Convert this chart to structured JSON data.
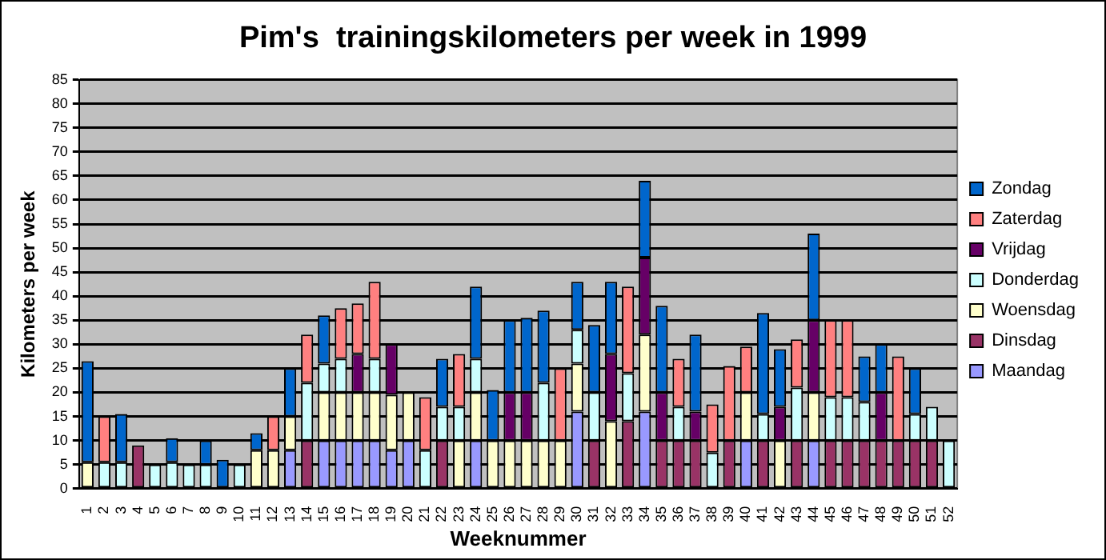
{
  "chart_data": {
    "type": "bar",
    "title": "Pim's  trainingskilometers per week in 1999",
    "xlabel": "Weeknummer",
    "ylabel": "Kilometers per week",
    "categories": [
      "1",
      "2",
      "3",
      "4",
      "5",
      "6",
      "7",
      "8",
      "9",
      "10",
      "11",
      "12",
      "13",
      "14",
      "15",
      "16",
      "17",
      "18",
      "19",
      "20",
      "21",
      "22",
      "23",
      "24",
      "25",
      "26",
      "27",
      "28",
      "29",
      "30",
      "31",
      "32",
      "33",
      "34",
      "35",
      "36",
      "37",
      "38",
      "39",
      "40",
      "41",
      "42",
      "43",
      "44",
      "45",
      "46",
      "47",
      "48",
      "49",
      "50",
      "51",
      "52"
    ],
    "stacked": true,
    "ylim": [
      0,
      85
    ],
    "yticks": [
      0,
      5,
      10,
      15,
      20,
      25,
      30,
      35,
      40,
      45,
      50,
      55,
      60,
      65,
      70,
      75,
      80,
      85
    ],
    "grid": "y",
    "legend": "right",
    "series": [
      {
        "name": "Maandag",
        "color": "#9999ff",
        "values": [
          null,
          null,
          null,
          null,
          null,
          null,
          null,
          null,
          null,
          null,
          null,
          null,
          8,
          null,
          10,
          10,
          10,
          10,
          8,
          10,
          null,
          null,
          null,
          10,
          null,
          null,
          null,
          null,
          null,
          16,
          null,
          null,
          null,
          16,
          null,
          null,
          null,
          null,
          null,
          10,
          null,
          null,
          null,
          10,
          null,
          null,
          null,
          null,
          null,
          null,
          null,
          null
        ]
      },
      {
        "name": "Dinsdag",
        "color": "#993366",
        "values": [
          null,
          null,
          null,
          9,
          null,
          null,
          null,
          null,
          null,
          null,
          null,
          null,
          null,
          10,
          null,
          null,
          null,
          null,
          null,
          null,
          null,
          10,
          null,
          null,
          null,
          null,
          null,
          null,
          null,
          null,
          10,
          null,
          14,
          null,
          10,
          10,
          10,
          null,
          10,
          null,
          10,
          null,
          10,
          null,
          10,
          10,
          10,
          10,
          10,
          10,
          10,
          null
        ]
      },
      {
        "name": "Woensdag",
        "color": "#ffffcc",
        "values": [
          5.5,
          null,
          null,
          null,
          null,
          null,
          null,
          null,
          null,
          null,
          8,
          8,
          7,
          null,
          10,
          10,
          10,
          10,
          11.5,
          10,
          null,
          null,
          10,
          10,
          10,
          10,
          10,
          10,
          10,
          10,
          null,
          14,
          null,
          16,
          null,
          null,
          null,
          null,
          null,
          10,
          null,
          10,
          null,
          10,
          null,
          null,
          null,
          null,
          null,
          null,
          null,
          null
        ]
      },
      {
        "name": "Donderdag",
        "color": "#ccffff",
        "values": [
          null,
          5.5,
          5.5,
          null,
          5,
          5.5,
          5,
          5,
          null,
          5,
          null,
          null,
          null,
          12,
          6,
          7,
          null,
          7,
          null,
          null,
          8,
          7,
          7,
          7,
          null,
          null,
          null,
          12,
          null,
          7,
          10,
          null,
          10,
          null,
          null,
          7,
          null,
          7.5,
          null,
          null,
          5.5,
          null,
          11,
          null,
          9,
          9,
          8,
          null,
          null,
          5.5,
          7,
          10
        ]
      },
      {
        "name": "Vrijdag",
        "color": "#660066",
        "values": [
          null,
          null,
          null,
          null,
          null,
          null,
          null,
          null,
          null,
          null,
          null,
          null,
          null,
          null,
          null,
          null,
          8,
          null,
          10.5,
          null,
          null,
          null,
          null,
          null,
          null,
          10,
          10,
          null,
          null,
          null,
          null,
          14,
          null,
          16,
          10,
          null,
          6,
          null,
          null,
          null,
          null,
          7,
          null,
          15,
          null,
          null,
          null,
          10,
          null,
          null,
          null,
          null
        ]
      },
      {
        "name": "Zaterdag",
        "color": "#ff8080",
        "values": [
          null,
          9.5,
          null,
          null,
          null,
          null,
          null,
          null,
          null,
          null,
          null,
          7,
          null,
          10,
          null,
          10.5,
          10.5,
          16,
          null,
          null,
          11,
          null,
          11,
          null,
          null,
          null,
          null,
          null,
          15,
          null,
          null,
          null,
          18,
          null,
          null,
          10,
          null,
          10,
          15.5,
          9.5,
          null,
          null,
          10,
          null,
          16,
          16,
          null,
          null,
          17.5,
          null,
          null,
          null
        ]
      },
      {
        "name": "Zondag",
        "color": "#0066cc",
        "values": [
          21,
          null,
          10,
          null,
          null,
          5,
          null,
          5,
          6,
          null,
          3.5,
          null,
          10,
          null,
          10,
          null,
          null,
          null,
          null,
          null,
          null,
          10,
          null,
          15,
          10.5,
          15,
          15.5,
          15,
          null,
          10,
          14,
          15,
          null,
          16,
          18,
          null,
          16,
          null,
          null,
          null,
          21,
          12,
          null,
          18,
          null,
          null,
          9.5,
          10,
          null,
          9.5,
          null,
          null
        ]
      }
    ]
  }
}
